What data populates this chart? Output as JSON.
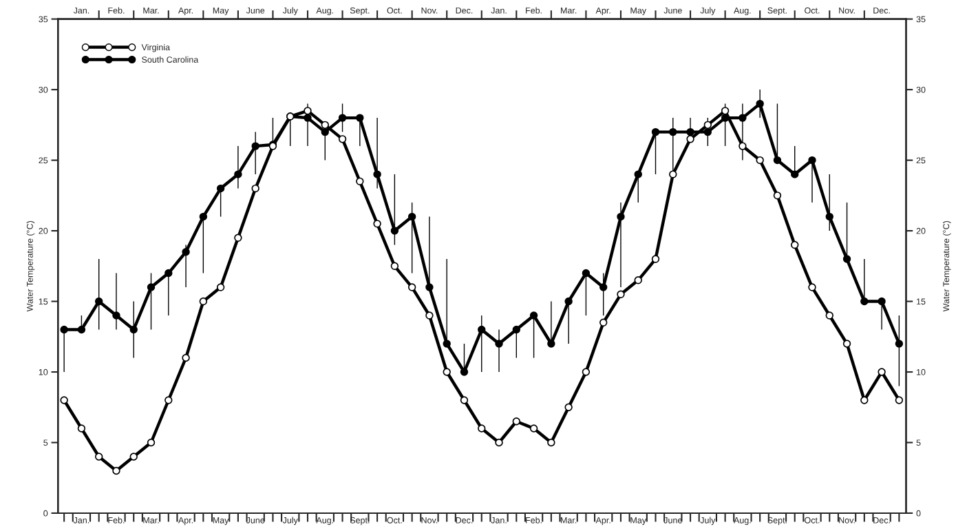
{
  "chart_data": {
    "type": "line",
    "ylabel": "Water Temperature (°C)",
    "y2label": "Water Temperature (°C)",
    "categories": [
      null,
      "Jan.",
      null,
      "Feb.",
      null,
      "Mar.",
      null,
      "Apr.",
      null,
      "May",
      null,
      "June",
      null,
      "July",
      null,
      "Aug.",
      null,
      "Sept.",
      null,
      "Oct.",
      null,
      "Nov.",
      null,
      "Dec.",
      null,
      "Jan.",
      null,
      "Feb.",
      null,
      "Mar.",
      null,
      "Apr.",
      null,
      "May",
      null,
      "June",
      null,
      "July",
      null,
      "Aug.",
      null,
      "Sept.",
      null,
      "Oct.",
      null,
      "Nov.",
      null,
      "Dec.",
      null
    ],
    "series": [
      {
        "name": "Virginia",
        "color": "#000000",
        "values": [
          8,
          6,
          4,
          3,
          4,
          5,
          8,
          11,
          15,
          16,
          19.5,
          23,
          26,
          28.1,
          28.5,
          27.5,
          26.5,
          23.5,
          20.5,
          17.5,
          16,
          14,
          10,
          8,
          6,
          5,
          6.5,
          6,
          5,
          7.5,
          10,
          13.5,
          15.5,
          16.5,
          18,
          24,
          26.5,
          27.5,
          28.5,
          26,
          25,
          22.5,
          19,
          16,
          14,
          12,
          8,
          10,
          8
        ]
      },
      {
        "name": "South Carolina",
        "color": "#000000",
        "values": [
          13,
          13,
          15,
          14,
          13,
          16,
          17,
          18.5,
          21,
          23,
          24,
          26,
          26.1,
          28.1,
          28,
          27,
          28,
          28,
          24,
          20,
          21,
          16,
          12,
          10,
          13,
          12,
          13,
          14,
          12,
          15,
          17,
          16,
          21,
          24,
          27,
          27,
          27,
          27,
          28,
          28,
          29,
          25,
          24,
          25,
          21,
          18,
          15,
          15,
          12
        ],
        "errors": [
          [
            10,
            13
          ],
          [
            13,
            14
          ],
          [
            13,
            18
          ],
          [
            13,
            17
          ],
          [
            11,
            15
          ],
          [
            13,
            17
          ],
          [
            14,
            17
          ],
          [
            16,
            19
          ],
          [
            17,
            21
          ],
          [
            21,
            23
          ],
          [
            23,
            26
          ],
          [
            24,
            27
          ],
          [
            26,
            28
          ],
          [
            26,
            28.1
          ],
          [
            26,
            29
          ],
          [
            25,
            27
          ],
          [
            27,
            29
          ],
          [
            26,
            28
          ],
          [
            23,
            28
          ],
          [
            19,
            24
          ],
          [
            17,
            22
          ],
          [
            16,
            21
          ],
          [
            12,
            18
          ],
          [
            10,
            12
          ],
          [
            10,
            14
          ],
          [
            10,
            13
          ],
          [
            11,
            13
          ],
          [
            11,
            14
          ],
          [
            12,
            15
          ],
          [
            12,
            15
          ],
          [
            14,
            17
          ],
          [
            14,
            17
          ],
          [
            16,
            22
          ],
          [
            22,
            24
          ],
          [
            24,
            27
          ],
          [
            24,
            28
          ],
          [
            26.5,
            28
          ],
          [
            26,
            28
          ],
          [
            26,
            29
          ],
          [
            25,
            29
          ],
          [
            28,
            30
          ],
          [
            25,
            29
          ],
          [
            24,
            26
          ],
          [
            22,
            25
          ],
          [
            20,
            24
          ],
          [
            18,
            22
          ],
          [
            15,
            18
          ],
          [
            13,
            15
          ],
          [
            9,
            14
          ]
        ]
      }
    ],
    "ylim": [
      0,
      35
    ],
    "yticks": [
      0,
      5,
      10,
      15,
      20,
      25,
      30,
      35
    ],
    "y2lim": [
      0,
      35
    ],
    "y2ticks": [
      0,
      5,
      10,
      15,
      20,
      25,
      30,
      35
    ],
    "marker": "circle",
    "line_style": "solid",
    "legend": "top left"
  }
}
